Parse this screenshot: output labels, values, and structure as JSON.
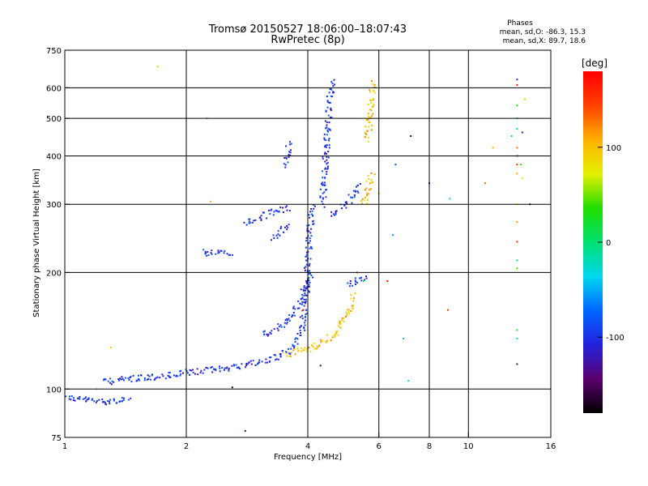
{
  "chart_data": {
    "type": "scatter",
    "title": "Tromsø 20150527 18:06:00–18:07:43",
    "subtitle": "RwPretec (8p)",
    "stats": {
      "label": "Phases",
      "line_o": "mean, sd,O: -86.3, 15.3",
      "line_x": "mean, sd,X:  89.7, 18.6"
    },
    "xlabel": "Frequency [MHz]",
    "ylabel": "Stationary phase Virtual Height [km]",
    "x_scale": "log",
    "y_scale": "log",
    "xlim": [
      1,
      16
    ],
    "ylim": [
      75,
      750
    ],
    "x_ticks": [
      1,
      2,
      4,
      6,
      8,
      10,
      16
    ],
    "x_tick_labels": [
      "1",
      "2",
      "4",
      "6",
      "8",
      "10",
      "16"
    ],
    "x_gridlines": [
      2,
      4,
      6,
      8,
      10
    ],
    "y_ticks": [
      75,
      100,
      200,
      300,
      400,
      500,
      600,
      750
    ],
    "y_tick_labels": [
      "75",
      "100",
      "200",
      "300",
      "400",
      "500",
      "600",
      "750"
    ],
    "y_gridlines": [
      100,
      200,
      300,
      400,
      500,
      600
    ],
    "grid": true,
    "colorbar": {
      "label": "[deg]",
      "range": [
        -180,
        180
      ],
      "ticks": [
        100,
        0,
        -100
      ],
      "tick_labels": [
        "100",
        "0",
        "-100"
      ],
      "colors": [
        "#000000",
        "#5b006e",
        "#2222dd",
        "#0066ff",
        "#00d8f0",
        "#00e070",
        "#22dd00",
        "#e6f000",
        "#ffb000",
        "#ff4000",
        "#ff0000"
      ]
    },
    "series": [
      {
        "mode": "O",
        "phase": -100,
        "color": "#1e5aff",
        "segments": [
          {
            "x": [
              1.0,
              1.1,
              1.2,
              1.3,
              1.45
            ],
            "y": [
              95,
              94,
              93,
              93,
              94
            ]
          },
          {
            "x": [
              1.25,
              1.4,
              1.6,
              1.8,
              2.0,
              2.3,
              2.6,
              3.0,
              3.3,
              3.6,
              3.85,
              3.95,
              4.0
            ],
            "y": [
              104,
              106,
              107,
              108,
              110,
              112,
              114,
              117,
              120,
              126,
              140,
              165,
              200
            ]
          },
          {
            "x": [
              4.0,
              4.05,
              4.1
            ],
            "y": [
              200,
              260,
              300
            ]
          },
          {
            "x": [
              4.35,
              4.4,
              4.45,
              4.5,
              4.55,
              4.6
            ],
            "y": [
              300,
              350,
              420,
              500,
              570,
              630
            ]
          },
          {
            "x": [
              4.6,
              4.8,
              5.0,
              5.2,
              5.4
            ],
            "y": [
              280,
              290,
              300,
              320,
              340
            ]
          },
          {
            "x": [
              3.1,
              3.3,
              3.5,
              3.7,
              3.9,
              4.1
            ],
            "y": [
              138,
              142,
              148,
              158,
              175,
              200
            ]
          },
          {
            "x": [
              2.8,
              3.0,
              3.2,
              3.4,
              3.6
            ],
            "y": [
              265,
              275,
              285,
              290,
              295
            ]
          },
          {
            "x": [
              3.3,
              3.45,
              3.6
            ],
            "y": [
              245,
              255,
              265
            ]
          },
          {
            "x": [
              3.5,
              3.55,
              3.6
            ],
            "y": [
              380,
              400,
              430
            ]
          },
          {
            "x": [
              2.2,
              2.4,
              2.6
            ],
            "y": [
              225,
              225,
              226
            ]
          },
          {
            "x": [
              5.0,
              5.3,
              5.6
            ],
            "y": [
              186,
              190,
              194
            ]
          }
        ]
      },
      {
        "mode": "X",
        "phase": 100,
        "color": "#e6f000",
        "segments": [
          {
            "x": [
              3.5,
              3.8,
              4.1,
              4.4,
              4.7,
              4.9,
              5.1,
              5.2
            ],
            "y": [
              123,
              125,
              128,
              132,
              140,
              150,
              162,
              175
            ]
          },
          {
            "x": [
              5.5,
              5.6,
              5.7,
              5.8
            ],
            "y": [
              300,
              320,
              340,
              360
            ]
          },
          {
            "x": [
              5.6,
              5.7,
              5.75,
              5.8
            ],
            "y": [
              440,
              500,
              560,
              620
            ]
          }
        ]
      }
    ],
    "scattered_points": [
      {
        "x": 1.7,
        "y": 680,
        "phase": 100
      },
      {
        "x": 2.25,
        "y": 500,
        "phase": 120
      },
      {
        "x": 2.3,
        "y": 305,
        "phase": 110
      },
      {
        "x": 1.3,
        "y": 128,
        "phase": 100
      },
      {
        "x": 1.2,
        "y": 100,
        "phase": 100
      },
      {
        "x": 2.6,
        "y": 101,
        "phase": -170
      },
      {
        "x": 2.8,
        "y": 78,
        "phase": -150
      },
      {
        "x": 7.2,
        "y": 450,
        "phase": -150
      },
      {
        "x": 8.0,
        "y": 340,
        "phase": -100
      },
      {
        "x": 9.0,
        "y": 310,
        "phase": -20
      },
      {
        "x": 6.3,
        "y": 190,
        "phase": 160
      },
      {
        "x": 6.5,
        "y": 250,
        "phase": -60
      },
      {
        "x": 6.9,
        "y": 135,
        "phase": -40
      },
      {
        "x": 7.1,
        "y": 105,
        "phase": -20
      },
      {
        "x": 8.9,
        "y": 160,
        "phase": 150
      },
      {
        "x": 6.0,
        "y": 320,
        "phase": 110
      },
      {
        "x": 6.6,
        "y": 380,
        "phase": -80
      },
      {
        "x": 11.0,
        "y": 340,
        "phase": 130
      },
      {
        "x": 11.5,
        "y": 420,
        "phase": 100
      },
      {
        "x": 14.2,
        "y": 300,
        "phase": -170
      },
      {
        "x": 13.8,
        "y": 560,
        "phase": 60
      },
      {
        "x": 12.8,
        "y": 450,
        "phase": -10
      },
      {
        "x": 13.6,
        "y": 460,
        "phase": -130
      },
      {
        "x": 13.2,
        "y": 630,
        "phase": -120
      },
      {
        "x": 13.2,
        "y": 610,
        "phase": 170
      },
      {
        "x": 13.2,
        "y": 540,
        "phase": 30
      },
      {
        "x": 13.2,
        "y": 500,
        "phase": -10
      },
      {
        "x": 13.2,
        "y": 470,
        "phase": -10
      },
      {
        "x": 13.2,
        "y": 420,
        "phase": 130
      },
      {
        "x": 13.2,
        "y": 400,
        "phase": 160
      },
      {
        "x": 13.2,
        "y": 380,
        "phase": 150
      },
      {
        "x": 13.2,
        "y": 360,
        "phase": 110
      },
      {
        "x": 13.2,
        "y": 300,
        "phase": 90
      },
      {
        "x": 13.2,
        "y": 270,
        "phase": 120
      },
      {
        "x": 13.2,
        "y": 240,
        "phase": 150
      },
      {
        "x": 13.2,
        "y": 215,
        "phase": 10
      },
      {
        "x": 13.2,
        "y": 205,
        "phase": 40
      },
      {
        "x": 13.2,
        "y": 142,
        "phase": 20
      },
      {
        "x": 13.2,
        "y": 135,
        "phase": -30
      },
      {
        "x": 13.2,
        "y": 116,
        "phase": -150
      },
      {
        "x": 13.5,
        "y": 380,
        "phase": 40
      },
      {
        "x": 13.6,
        "y": 350,
        "phase": 70
      },
      {
        "x": 5.3,
        "y": 200,
        "phase": 150
      },
      {
        "x": 4.3,
        "y": 115,
        "phase": -150
      },
      {
        "x": 3.9,
        "y": 160,
        "phase": 170
      },
      {
        "x": 5.5,
        "y": 190,
        "phase": 0
      }
    ]
  }
}
